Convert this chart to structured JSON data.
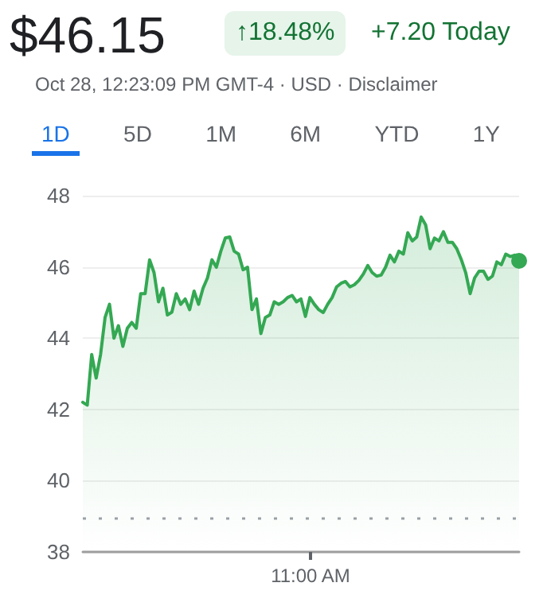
{
  "chart_data": {
    "type": "area",
    "title": "$46.15",
    "subtitle": "Oct 28, 12:23:09 PM GMT-4 · USD · Disclaimer",
    "annotations": [
      "↑18.48%",
      "+7.20 Today",
      "1D",
      "5D",
      "1M",
      "6M",
      "YTD",
      "1Y",
      "11:00 AM"
    ],
    "categories": [
      null,
      null,
      null,
      null,
      null,
      null,
      null,
      null,
      null,
      null,
      null,
      null,
      null,
      null,
      null,
      null,
      null,
      null,
      null,
      null,
      null,
      null,
      null,
      null,
      null,
      null,
      null,
      null,
      null,
      null,
      null,
      null,
      null,
      null,
      null,
      null,
      null,
      null,
      null,
      null,
      null,
      null,
      null,
      null,
      null,
      null,
      null,
      null,
      null,
      null,
      null,
      null,
      null,
      null,
      null,
      null,
      null,
      null,
      null,
      null,
      null,
      null,
      null,
      null,
      null,
      null,
      null,
      null,
      null,
      null,
      null,
      null,
      null,
      null,
      null,
      null,
      null,
      null,
      null,
      null,
      null,
      null,
      null,
      null,
      null,
      null,
      null,
      null,
      null,
      null,
      null,
      null,
      null,
      null,
      null,
      null,
      null,
      null,
      null
    ],
    "series": [
      {
        "color": "#34a853",
        "values": [
          42.2,
          42.12,
          43.54,
          42.88,
          43.55,
          44.58,
          44.95,
          44.0,
          44.35,
          43.77,
          44.28,
          44.44,
          44.28,
          45.25,
          45.25,
          46.2,
          45.84,
          45.02,
          45.4,
          44.65,
          44.73,
          45.25,
          44.95,
          45.1,
          44.8,
          45.32,
          44.95,
          45.4,
          45.69,
          46.2,
          45.99,
          46.44,
          46.81,
          46.84,
          46.44,
          46.36,
          45.92,
          45.99,
          44.8,
          45.1,
          44.13,
          44.58,
          44.65,
          45.02,
          44.95,
          45.02,
          45.14,
          45.2,
          45.02,
          45.1,
          44.61,
          45.14,
          44.95,
          44.8,
          44.72,
          44.95,
          45.14,
          45.44,
          45.54,
          45.59,
          45.44,
          45.5,
          45.62,
          45.8,
          46.04,
          45.84,
          45.74,
          45.77,
          45.99,
          46.33,
          46.14,
          46.44,
          46.36,
          46.96,
          46.73,
          46.84,
          47.4,
          47.18,
          46.51,
          46.81,
          46.73,
          46.99,
          46.69,
          46.69,
          46.51,
          46.21,
          45.84,
          45.25,
          45.69,
          45.88,
          45.88,
          45.65,
          45.74,
          46.14,
          46.06,
          46.36,
          46.29,
          46.33,
          46.15
        ]
      }
    ],
    "ylim": [
      38,
      48
    ],
    "yticks": [
      38,
      40,
      42,
      44,
      46,
      48
    ],
    "ref_lines": [
      {
        "axis": "y",
        "value": 38.95,
        "line_style": "dotted",
        "color": "#9aa0a6"
      }
    ],
    "grid": "y",
    "marker": "none",
    "line_style": "solid"
  }
}
